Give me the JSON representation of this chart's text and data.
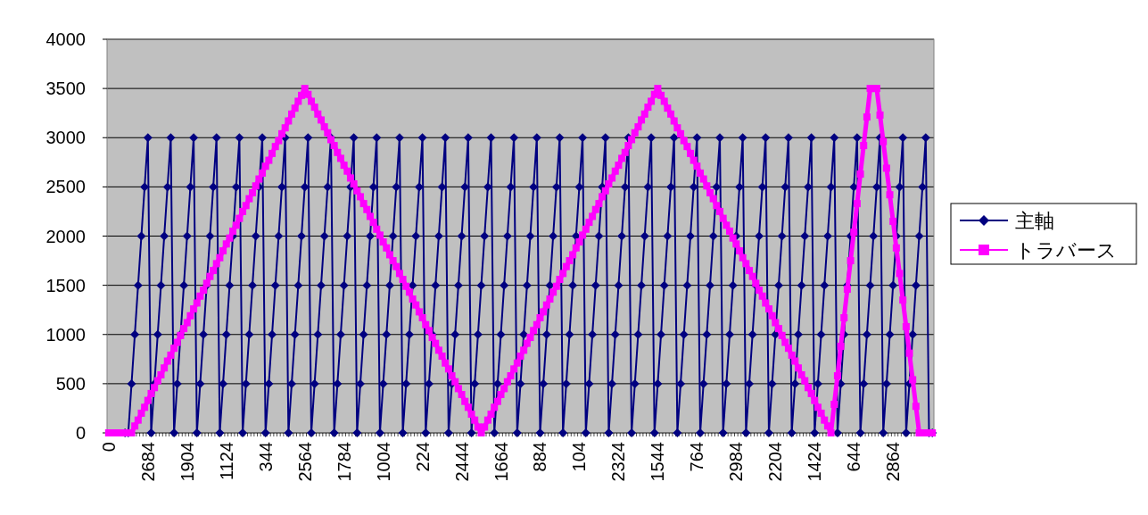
{
  "chart_data": {
    "type": "line",
    "categories": [
      "0",
      null,
      null,
      null,
      null,
      null,
      null,
      null,
      null,
      null,
      null,
      null,
      "2684",
      null,
      null,
      null,
      null,
      null,
      null,
      null,
      null,
      null,
      null,
      null,
      "1904",
      null,
      null,
      null,
      null,
      null,
      null,
      null,
      null,
      null,
      null,
      null,
      "1124",
      null,
      null,
      null,
      null,
      null,
      null,
      null,
      null,
      null,
      null,
      null,
      "344",
      null,
      null,
      null,
      null,
      null,
      null,
      null,
      null,
      null,
      null,
      null,
      "2564",
      null,
      null,
      null,
      null,
      null,
      null,
      null,
      null,
      null,
      null,
      null,
      "1784",
      null,
      null,
      null,
      null,
      null,
      null,
      null,
      null,
      null,
      null,
      null,
      "1004",
      null,
      null,
      null,
      null,
      null,
      null,
      null,
      null,
      null,
      null,
      null,
      "224",
      null,
      null,
      null,
      null,
      null,
      null,
      null,
      null,
      null,
      null,
      null,
      "2444",
      null,
      null,
      null,
      null,
      null,
      null,
      null,
      null,
      null,
      null,
      null,
      "1664",
      null,
      null,
      null,
      null,
      null,
      null,
      null,
      null,
      null,
      null,
      null,
      "884",
      null,
      null,
      null,
      null,
      null,
      null,
      null,
      null,
      null,
      null,
      null,
      "104",
      null,
      null,
      null,
      null,
      null,
      null,
      null,
      null,
      null,
      null,
      null,
      "2324",
      null,
      null,
      null,
      null,
      null,
      null,
      null,
      null,
      null,
      null,
      null,
      "1544",
      null,
      null,
      null,
      null,
      null,
      null,
      null,
      null,
      null,
      null,
      null,
      "764",
      null,
      null,
      null,
      null,
      null,
      null,
      null,
      null,
      null,
      null,
      null,
      "2984",
      null,
      null,
      null,
      null,
      null,
      null,
      null,
      null,
      null,
      null,
      null,
      "2204",
      null,
      null,
      null,
      null,
      null,
      null,
      null,
      null,
      null,
      null,
      null,
      "1424",
      null,
      null,
      null,
      null,
      null,
      null,
      null,
      null,
      null,
      null,
      null,
      "644",
      null,
      null,
      null,
      null,
      null,
      null,
      null,
      null,
      null,
      null,
      null,
      "2864",
      null,
      null,
      null,
      null,
      null,
      null,
      null,
      null,
      null,
      null,
      null,
      null
    ],
    "ylim": [
      0,
      4000
    ],
    "yticks": [
      0,
      500,
      1000,
      1500,
      2000,
      2500,
      3000,
      3500,
      4000
    ],
    "grid": "y",
    "legend": "right",
    "series": [
      {
        "name": "主軸",
        "color": "#000080",
        "marker": "diamond",
        "values": [
          null,
          null,
          null,
          null,
          null,
          0,
          0,
          500,
          1000,
          1500,
          2000,
          2500,
          3000,
          0,
          500,
          1000,
          1500,
          2000,
          2500,
          3000,
          0,
          500,
          1000,
          1500,
          2000,
          2500,
          3000,
          0,
          500,
          1000,
          1500,
          2000,
          2500,
          3000,
          0,
          500,
          1000,
          1500,
          2000,
          2500,
          3000,
          0,
          500,
          1000,
          1500,
          2000,
          2500,
          3000,
          0,
          500,
          1000,
          1500,
          2000,
          2500,
          3000,
          0,
          500,
          1000,
          1500,
          2000,
          2500,
          3000,
          0,
          500,
          1000,
          1500,
          2000,
          2500,
          3000,
          0,
          500,
          1000,
          1500,
          2000,
          2500,
          3000,
          0,
          500,
          1000,
          1500,
          2000,
          2500,
          3000,
          0,
          500,
          1000,
          1500,
          2000,
          2500,
          3000,
          0,
          500,
          1000,
          1500,
          2000,
          2500,
          3000,
          0,
          500,
          1000,
          1500,
          2000,
          2500,
          3000,
          0,
          500,
          1000,
          1500,
          2000,
          2500,
          3000,
          0,
          500,
          1000,
          1500,
          2000,
          2500,
          3000,
          0,
          500,
          1000,
          1500,
          2000,
          2500,
          3000,
          0,
          500,
          1000,
          1500,
          2000,
          2500,
          3000,
          0,
          500,
          1000,
          1500,
          2000,
          2500,
          3000,
          0,
          500,
          1000,
          1500,
          2000,
          2500,
          3000,
          0,
          500,
          1000,
          1500,
          2000,
          2500,
          3000,
          0,
          500,
          1000,
          1500,
          2000,
          2500,
          3000,
          0,
          500,
          1000,
          1500,
          2000,
          2500,
          3000,
          0,
          500,
          1000,
          1500,
          2000,
          2500,
          3000,
          0,
          500,
          1000,
          1500,
          2000,
          2500,
          3000,
          0,
          500,
          1000,
          1500,
          2000,
          2500,
          3000,
          0,
          500,
          1000,
          1500,
          2000,
          2500,
          3000,
          0,
          500,
          1000,
          1500,
          2000,
          2500,
          3000,
          0,
          500,
          1000,
          1500,
          2000,
          2500,
          3000,
          0,
          500,
          1000,
          1500,
          2000,
          2500,
          3000,
          0,
          500,
          1000,
          1500,
          2000,
          2500,
          3000,
          0,
          500,
          1000,
          1500,
          2000,
          2500,
          3000,
          0,
          500,
          1000,
          1500,
          2000,
          2500,
          3000,
          0,
          500,
          1000,
          1500,
          2000,
          2500,
          3000,
          0,
          500,
          1000,
          1500,
          2000,
          2500,
          3000,
          0,
          0
        ]
      },
      {
        "name": "トラバース",
        "color": "#ff00ff",
        "marker": "square",
        "values": [
          0,
          0,
          0,
          0,
          0,
          0,
          0,
          0,
          70,
          130,
          200,
          260,
          330,
          400,
          460,
          530,
          590,
          660,
          730,
          790,
          860,
          920,
          990,
          1060,
          1120,
          1190,
          1260,
          1320,
          1390,
          1450,
          1520,
          1590,
          1650,
          1720,
          1780,
          1850,
          1920,
          1980,
          2050,
          2110,
          2180,
          2250,
          2310,
          2380,
          2440,
          2510,
          2580,
          2640,
          2710,
          2770,
          2840,
          2910,
          2970,
          3040,
          3100,
          3170,
          3240,
          3300,
          3370,
          3430,
          3500,
          3440,
          3370,
          3310,
          3240,
          3180,
          3110,
          3050,
          2980,
          2920,
          2850,
          2790,
          2720,
          2660,
          2590,
          2530,
          2460,
          2400,
          2330,
          2270,
          2200,
          2140,
          2070,
          2010,
          1940,
          1880,
          1810,
          1750,
          1690,
          1620,
          1560,
          1490,
          1430,
          1360,
          1300,
          1230,
          1170,
          1100,
          1040,
          970,
          910,
          840,
          780,
          710,
          650,
          580,
          520,
          450,
          390,
          320,
          260,
          190,
          130,
          60,
          0,
          60,
          130,
          190,
          260,
          320,
          390,
          450,
          520,
          580,
          650,
          710,
          780,
          840,
          910,
          970,
          1040,
          1100,
          1170,
          1230,
          1300,
          1360,
          1430,
          1490,
          1560,
          1620,
          1690,
          1750,
          1810,
          1880,
          1940,
          2010,
          2070,
          2140,
          2200,
          2270,
          2330,
          2400,
          2460,
          2530,
          2590,
          2660,
          2720,
          2790,
          2850,
          2920,
          2980,
          3050,
          3110,
          3180,
          3240,
          3310,
          3370,
          3440,
          3500,
          3430,
          3370,
          3300,
          3240,
          3170,
          3100,
          3040,
          2970,
          2910,
          2840,
          2770,
          2710,
          2640,
          2580,
          2510,
          2440,
          2380,
          2310,
          2250,
          2180,
          2110,
          2050,
          1980,
          1920,
          1850,
          1780,
          1720,
          1650,
          1590,
          1520,
          1450,
          1390,
          1320,
          1260,
          1190,
          1120,
          1060,
          990,
          920,
          860,
          790,
          730,
          660,
          590,
          530,
          460,
          400,
          330,
          260,
          200,
          130,
          70,
          0,
          290,
          580,
          880,
          1170,
          1460,
          1750,
          2040,
          2330,
          2630,
          2920,
          3210,
          3500,
          3500,
          3500,
          3230,
          2960,
          2690,
          2420,
          2150,
          1880,
          1620,
          1350,
          1080,
          810,
          540,
          270,
          0,
          0,
          0,
          0,
          0
        ]
      }
    ]
  }
}
